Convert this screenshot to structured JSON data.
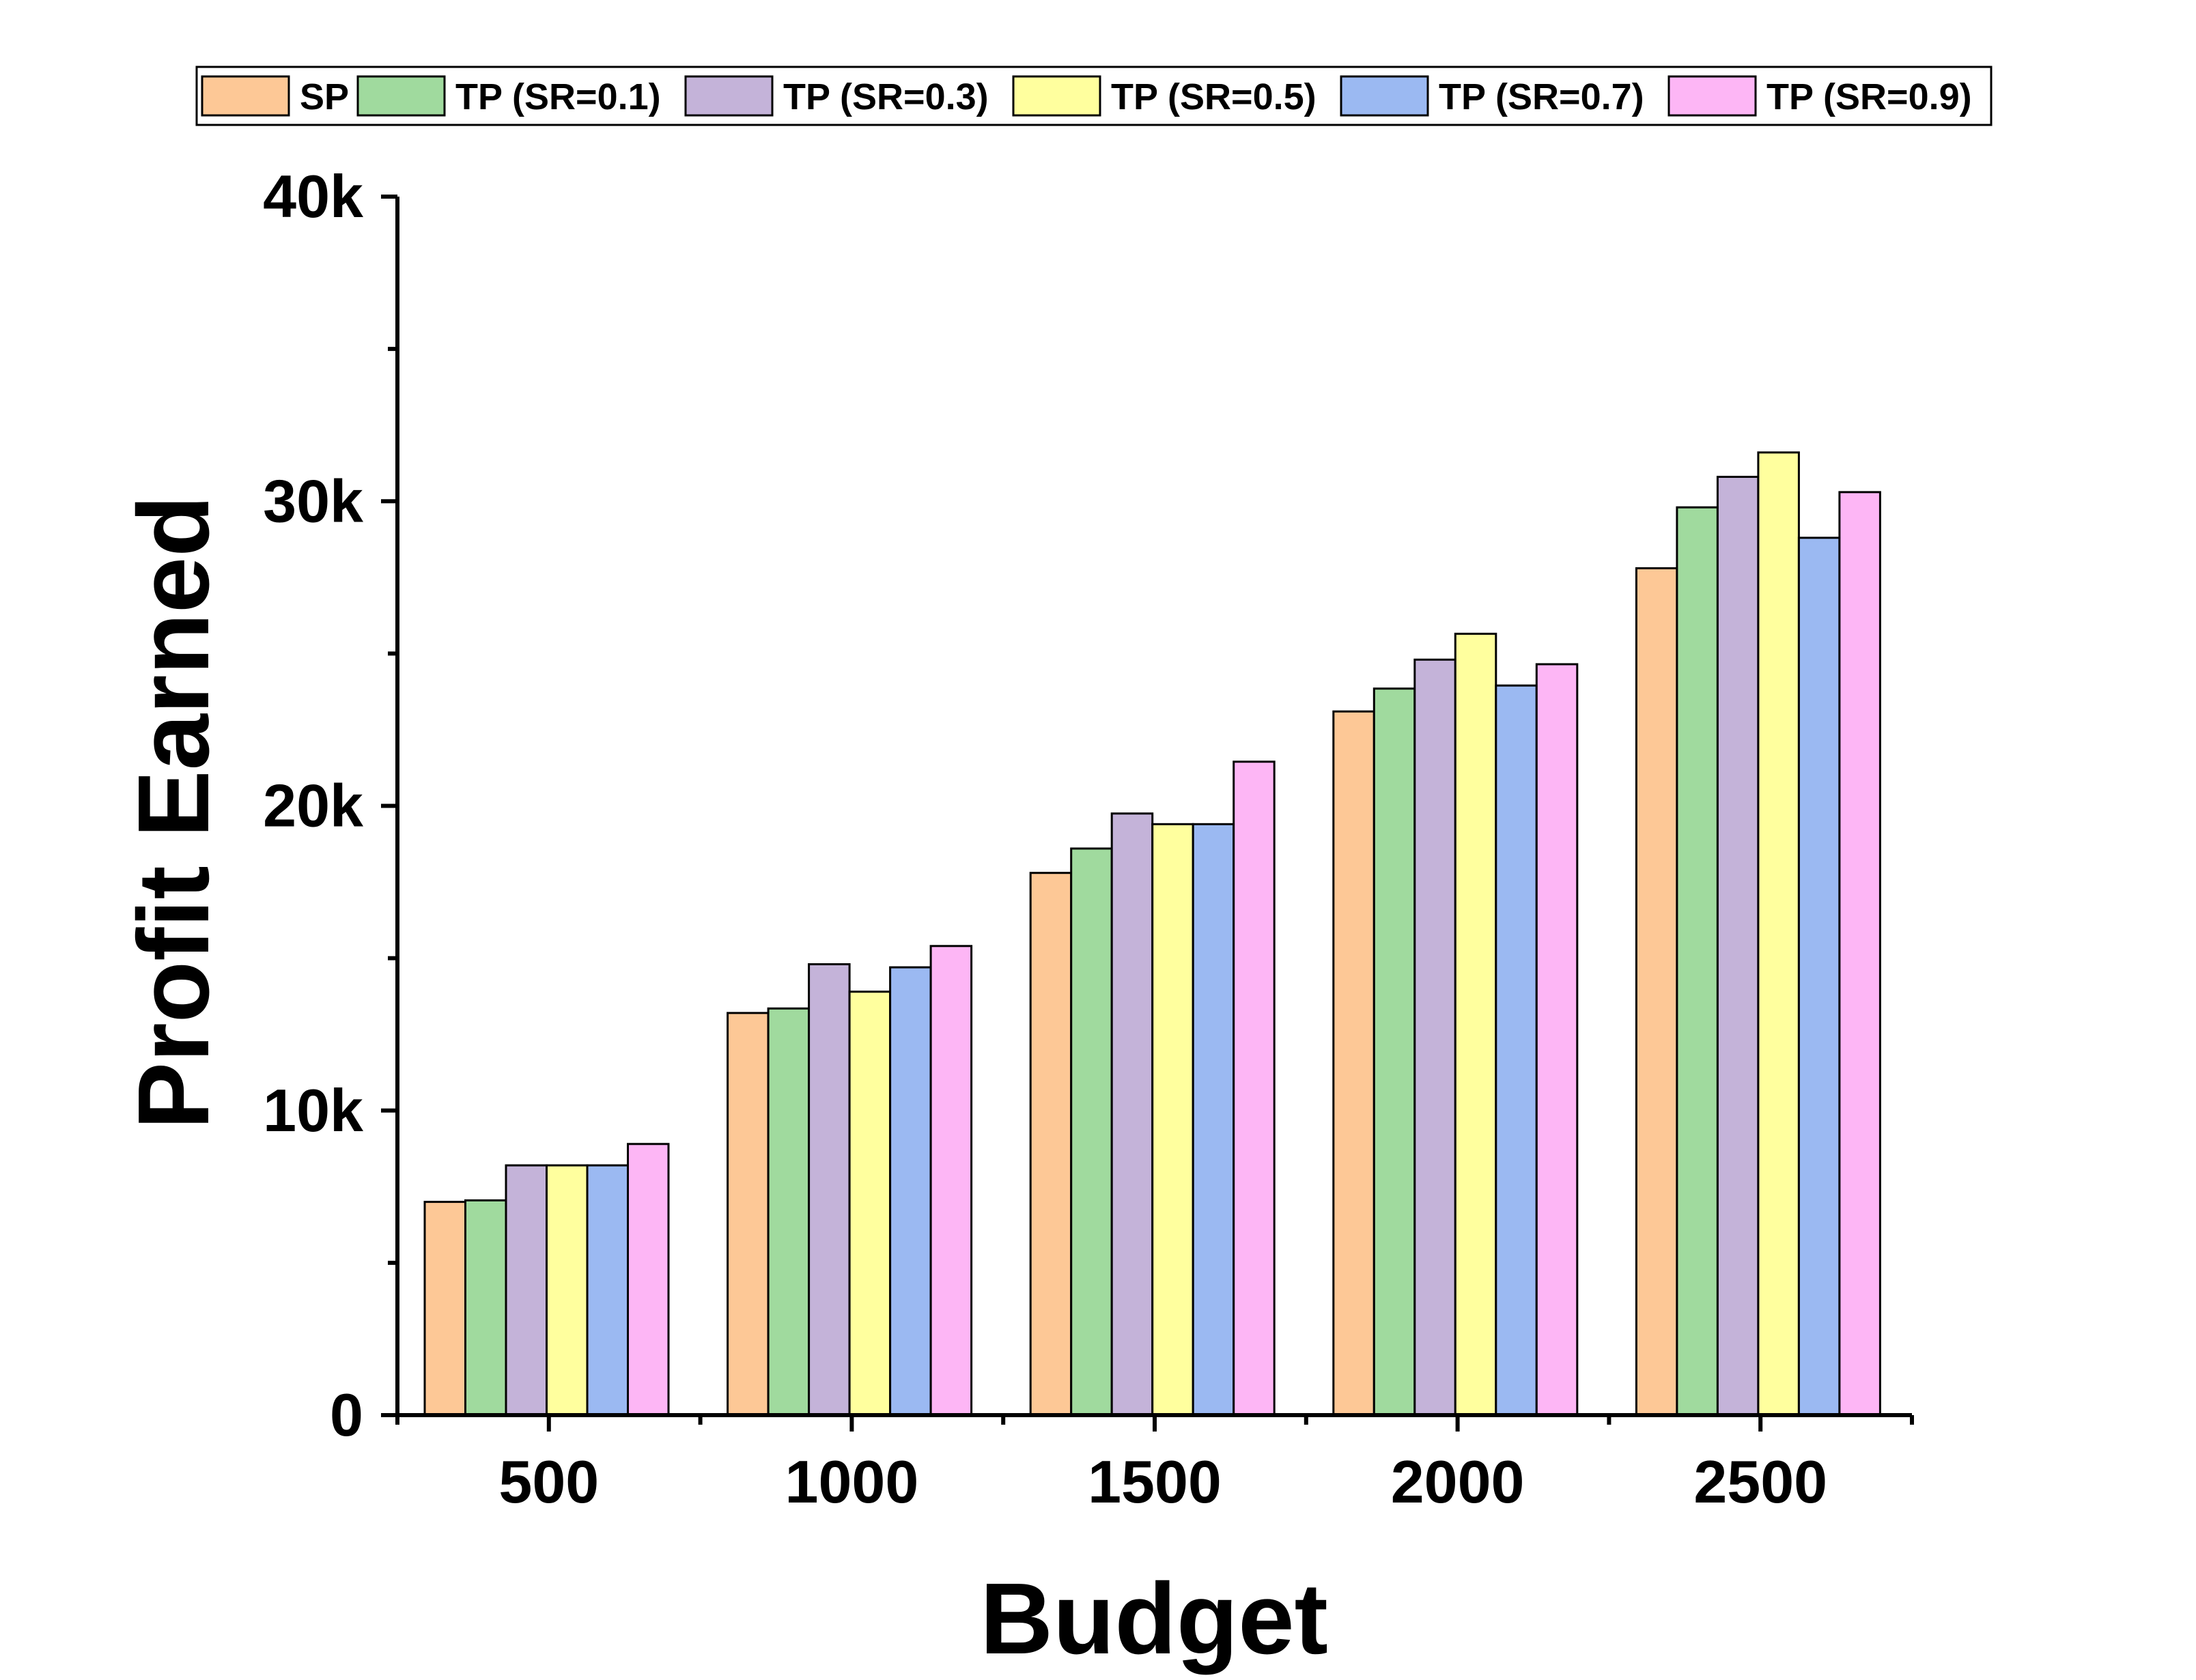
{
  "chart_data": {
    "type": "bar",
    "title": "",
    "xlabel": "Budget",
    "ylabel": "Profit Earned",
    "categories": [
      "500",
      "1000",
      "1500",
      "2000",
      "2500"
    ],
    "ylim": [
      0,
      40000
    ],
    "yticks": [
      {
        "value": 0,
        "label": "0"
      },
      {
        "value": 10000,
        "label": "10k"
      },
      {
        "value": 20000,
        "label": "20k"
      },
      {
        "value": 30000,
        "label": "30k"
      },
      {
        "value": 40000,
        "label": "40k"
      }
    ],
    "grid": false,
    "legend_position": "top",
    "series": [
      {
        "name": "SP",
        "color": "#FDC896",
        "values": [
          7000,
          13200,
          17800,
          23100,
          27800
        ]
      },
      {
        "name": "TP (SR=0.1)",
        "color": "#A0DA9E",
        "values": [
          7050,
          13350,
          18600,
          23850,
          29800
        ]
      },
      {
        "name": "TP (SR=0.3)",
        "color": "#C4B3D9",
        "values": [
          8200,
          14800,
          19750,
          24800,
          30800
        ]
      },
      {
        "name": "TP (SR=0.5)",
        "color": "#FFFF9E",
        "values": [
          8200,
          13900,
          19400,
          25650,
          31600
        ]
      },
      {
        "name": "TP (SR=0.7)",
        "color": "#9BB9F2",
        "values": [
          8200,
          14700,
          19400,
          23950,
          28800
        ]
      },
      {
        "name": "TP (SR=0.9)",
        "color": "#FDB6F5",
        "values": [
          8900,
          15400,
          21450,
          24650,
          30300
        ]
      }
    ]
  }
}
